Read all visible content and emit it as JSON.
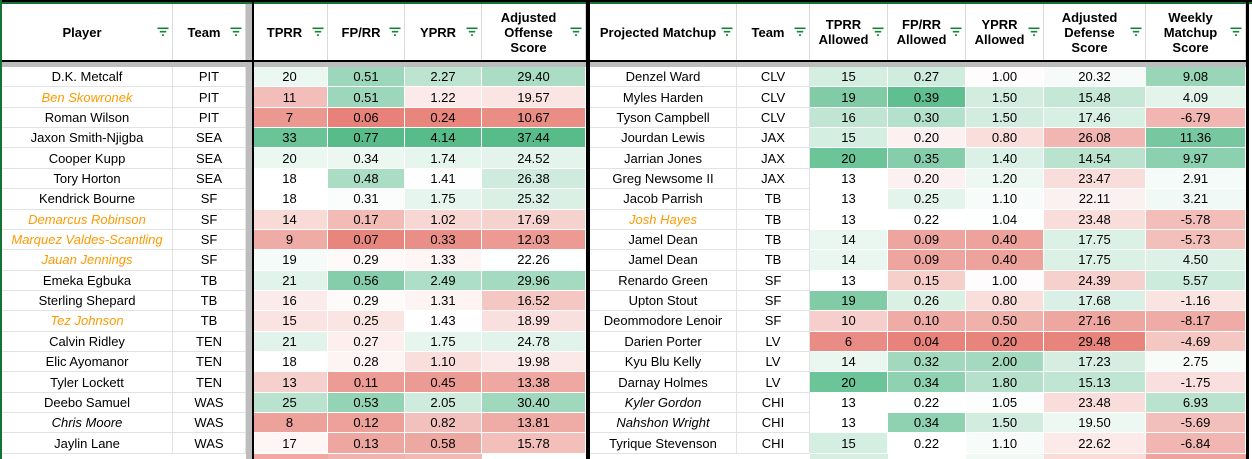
{
  "colors": {
    "range_border_green": "#137333",
    "table_border_black": "#000000",
    "gray_band": "#bdbdbd",
    "gridline": "#e2e2e2",
    "header_gridline": "#d9d9d9",
    "scale_green": "#57bb8a",
    "scale_red": "#e67c73",
    "scale_mid_white": "#ffffff",
    "special_player_orange": "#ff9900",
    "filter_icon_green": "#188038"
  },
  "left_table": {
    "headers": [
      "Player",
      "Team",
      "TPRR",
      "FP/RR",
      "YPRR",
      "Adjusted Offense Score"
    ],
    "value_scale_keys": [
      "tprr",
      "fprr",
      "yprr",
      "aos"
    ],
    "rows": [
      {
        "player": "D.K. Metcalf",
        "team": "PIT",
        "style": "normal",
        "values": [
          "20",
          "0.51",
          "2.27",
          "29.40"
        ]
      },
      {
        "player": "Ben Skowronek",
        "team": "PIT",
        "style": "orange",
        "values": [
          "11",
          "0.51",
          "1.22",
          "19.57"
        ]
      },
      {
        "player": "Roman Wilson",
        "team": "PIT",
        "style": "normal",
        "values": [
          "7",
          "0.06",
          "0.24",
          "10.67"
        ]
      },
      {
        "player": "Jaxon Smith-Njigba",
        "team": "SEA",
        "style": "normal",
        "values": [
          "33",
          "0.77",
          "4.14",
          "37.44"
        ]
      },
      {
        "player": "Cooper Kupp",
        "team": "SEA",
        "style": "normal",
        "values": [
          "20",
          "0.34",
          "1.74",
          "24.52"
        ]
      },
      {
        "player": "Tory Horton",
        "team": "SEA",
        "style": "normal",
        "values": [
          "18",
          "0.48",
          "1.41",
          "26.38"
        ]
      },
      {
        "player": "Kendrick Bourne",
        "team": "SF",
        "style": "normal",
        "values": [
          "18",
          "0.31",
          "1.75",
          "25.32"
        ]
      },
      {
        "player": "Demarcus Robinson",
        "team": "SF",
        "style": "orange",
        "values": [
          "14",
          "0.17",
          "1.02",
          "17.69"
        ]
      },
      {
        "player": "Marquez Valdes-Scantling",
        "team": "SF",
        "style": "orange",
        "values": [
          "9",
          "0.07",
          "0.33",
          "12.03"
        ]
      },
      {
        "player": "Jauan Jennings",
        "team": "SF",
        "style": "orange",
        "values": [
          "19",
          "0.29",
          "1.33",
          "22.26"
        ]
      },
      {
        "player": "Emeka Egbuka",
        "team": "TB",
        "style": "normal",
        "values": [
          "21",
          "0.56",
          "2.49",
          "29.96"
        ]
      },
      {
        "player": "Sterling Shepard",
        "team": "TB",
        "style": "normal",
        "values": [
          "16",
          "0.29",
          "1.31",
          "16.52"
        ]
      },
      {
        "player": "Tez Johnson",
        "team": "TB",
        "style": "orange",
        "values": [
          "15",
          "0.25",
          "1.43",
          "18.99"
        ]
      },
      {
        "player": "Calvin Ridley",
        "team": "TEN",
        "style": "normal",
        "values": [
          "21",
          "0.27",
          "1.75",
          "24.78"
        ]
      },
      {
        "player": "Elic Ayomanor",
        "team": "TEN",
        "style": "normal",
        "values": [
          "18",
          "0.28",
          "1.10",
          "19.98"
        ]
      },
      {
        "player": "Tyler Lockett",
        "team": "TEN",
        "style": "normal",
        "values": [
          "13",
          "0.11",
          "0.45",
          "13.38"
        ]
      },
      {
        "player": "Deebo Samuel",
        "team": "WAS",
        "style": "normal",
        "values": [
          "25",
          "0.53",
          "2.05",
          "30.40"
        ]
      },
      {
        "player": "Chris Moore",
        "team": "WAS",
        "style": "italic",
        "values": [
          "8",
          "0.12",
          "0.82",
          "13.81"
        ]
      },
      {
        "player": "Jaylin Lane",
        "team": "WAS",
        "style": "normal",
        "values": [
          "17",
          "0.13",
          "0.58",
          "15.78"
        ]
      }
    ],
    "partial_row_colors": [
      "#ffffff",
      "#ffffff",
      "#fce8e6",
      "#efa9a2",
      "#f1b3ad",
      "#f3bab4"
    ]
  },
  "right_table": {
    "headers": [
      "Projected Matchup",
      "Team",
      "TPRR Allowed",
      "FP/RR Allowed",
      "YPRR Allowed",
      "Adjusted Defense Score",
      "Weekly Matchup Score"
    ],
    "value_scale_keys": [
      "tprr_allowed",
      "fprr_allowed",
      "yprr_allowed",
      "ads",
      "wms"
    ],
    "rows": [
      {
        "player": "Denzel Ward",
        "team": "CLV",
        "style": "normal",
        "values": [
          "15",
          "0.27",
          "1.00",
          "20.32",
          "9.08"
        ]
      },
      {
        "player": "Myles Harden",
        "team": "CLV",
        "style": "normal",
        "values": [
          "19",
          "0.39",
          "1.50",
          "15.48",
          "4.09"
        ]
      },
      {
        "player": "Tyson Campbell",
        "team": "CLV",
        "style": "normal",
        "values": [
          "16",
          "0.30",
          "1.50",
          "17.46",
          "-6.79"
        ]
      },
      {
        "player": "Jourdan Lewis",
        "team": "JAX",
        "style": "normal",
        "values": [
          "15",
          "0.20",
          "0.80",
          "26.08",
          "11.36"
        ]
      },
      {
        "player": "Jarrian Jones",
        "team": "JAX",
        "style": "normal",
        "values": [
          "20",
          "0.35",
          "1.40",
          "14.54",
          "9.97"
        ]
      },
      {
        "player": "Greg Newsome II",
        "team": "JAX",
        "style": "normal",
        "values": [
          "13",
          "0.20",
          "1.20",
          "23.47",
          "2.91"
        ]
      },
      {
        "player": "Jacob Parrish",
        "team": "TB",
        "style": "normal",
        "values": [
          "13",
          "0.25",
          "1.10",
          "22.11",
          "3.21"
        ]
      },
      {
        "player": "Josh Hayes",
        "team": "TB",
        "style": "orange",
        "values": [
          "13",
          "0.22",
          "1.04",
          "23.48",
          "-5.78"
        ]
      },
      {
        "player": "Jamel Dean",
        "team": "TB",
        "style": "normal",
        "values": [
          "14",
          "0.09",
          "0.40",
          "17.75",
          "-5.73"
        ]
      },
      {
        "player": "Jamel Dean",
        "team": "TB",
        "style": "normal",
        "values": [
          "14",
          "0.09",
          "0.40",
          "17.75",
          "4.50"
        ]
      },
      {
        "player": "Renardo Green",
        "team": "SF",
        "style": "normal",
        "values": [
          "13",
          "0.15",
          "1.00",
          "24.39",
          "5.57"
        ]
      },
      {
        "player": "Upton Stout",
        "team": "SF",
        "style": "normal",
        "values": [
          "19",
          "0.26",
          "0.80",
          "17.68",
          "-1.16"
        ]
      },
      {
        "player": "Deommodore Lenoir",
        "team": "SF",
        "style": "normal",
        "values": [
          "10",
          "0.10",
          "0.50",
          "27.16",
          "-8.17"
        ]
      },
      {
        "player": "Darien Porter",
        "team": "LV",
        "style": "normal",
        "values": [
          "6",
          "0.04",
          "0.20",
          "29.48",
          "-4.69"
        ]
      },
      {
        "player": "Kyu Blu Kelly",
        "team": "LV",
        "style": "normal",
        "values": [
          "14",
          "0.32",
          "2.00",
          "17.23",
          "2.75"
        ]
      },
      {
        "player": "Darnay Holmes",
        "team": "LV",
        "style": "normal",
        "values": [
          "20",
          "0.34",
          "1.80",
          "15.13",
          "-1.75"
        ]
      },
      {
        "player": "Kyler Gordon",
        "team": "CHI",
        "style": "italic",
        "values": [
          "13",
          "0.22",
          "1.05",
          "23.48",
          "6.93"
        ]
      },
      {
        "player": "Nahshon Wright",
        "team": "CHI",
        "style": "italic",
        "values": [
          "13",
          "0.34",
          "1.50",
          "19.50",
          "-5.69"
        ]
      },
      {
        "player": "Tyrique Stevenson",
        "team": "CHI",
        "style": "normal",
        "values": [
          "15",
          "0.22",
          "1.10",
          "22.62",
          "-6.84"
        ]
      }
    ],
    "partial_row_colors": [
      "#ffffff",
      "#ffffff",
      "#d7eee2",
      "#ffffff",
      "#f1f9f5",
      "#fadcd9",
      "#eca49d"
    ]
  },
  "color_scales": {
    "tprr": {
      "min": 4,
      "mid": 18,
      "max": 35
    },
    "fprr": {
      "min": 0.05,
      "mid": 0.3,
      "max": 0.66
    },
    "yprr": {
      "min": 0.15,
      "mid": 1.42,
      "max": 3.6
    },
    "aos": {
      "min": 9,
      "mid": 22.2,
      "max": 36.5
    },
    "tprr_allowed": {
      "min": 5,
      "mid": 13,
      "max": 21
    },
    "fprr_allowed": {
      "min": 0.03,
      "mid": 0.22,
      "max": 0.4
    },
    "yprr_allowed": {
      "min": 0.15,
      "mid": 1.02,
      "max": 2.8
    },
    "ads": {
      "min": 5,
      "mid": 21.2,
      "max": 30,
      "invert": true
    },
    "wms": {
      "min": -14,
      "mid": 2.2,
      "max": 13.5
    }
  }
}
